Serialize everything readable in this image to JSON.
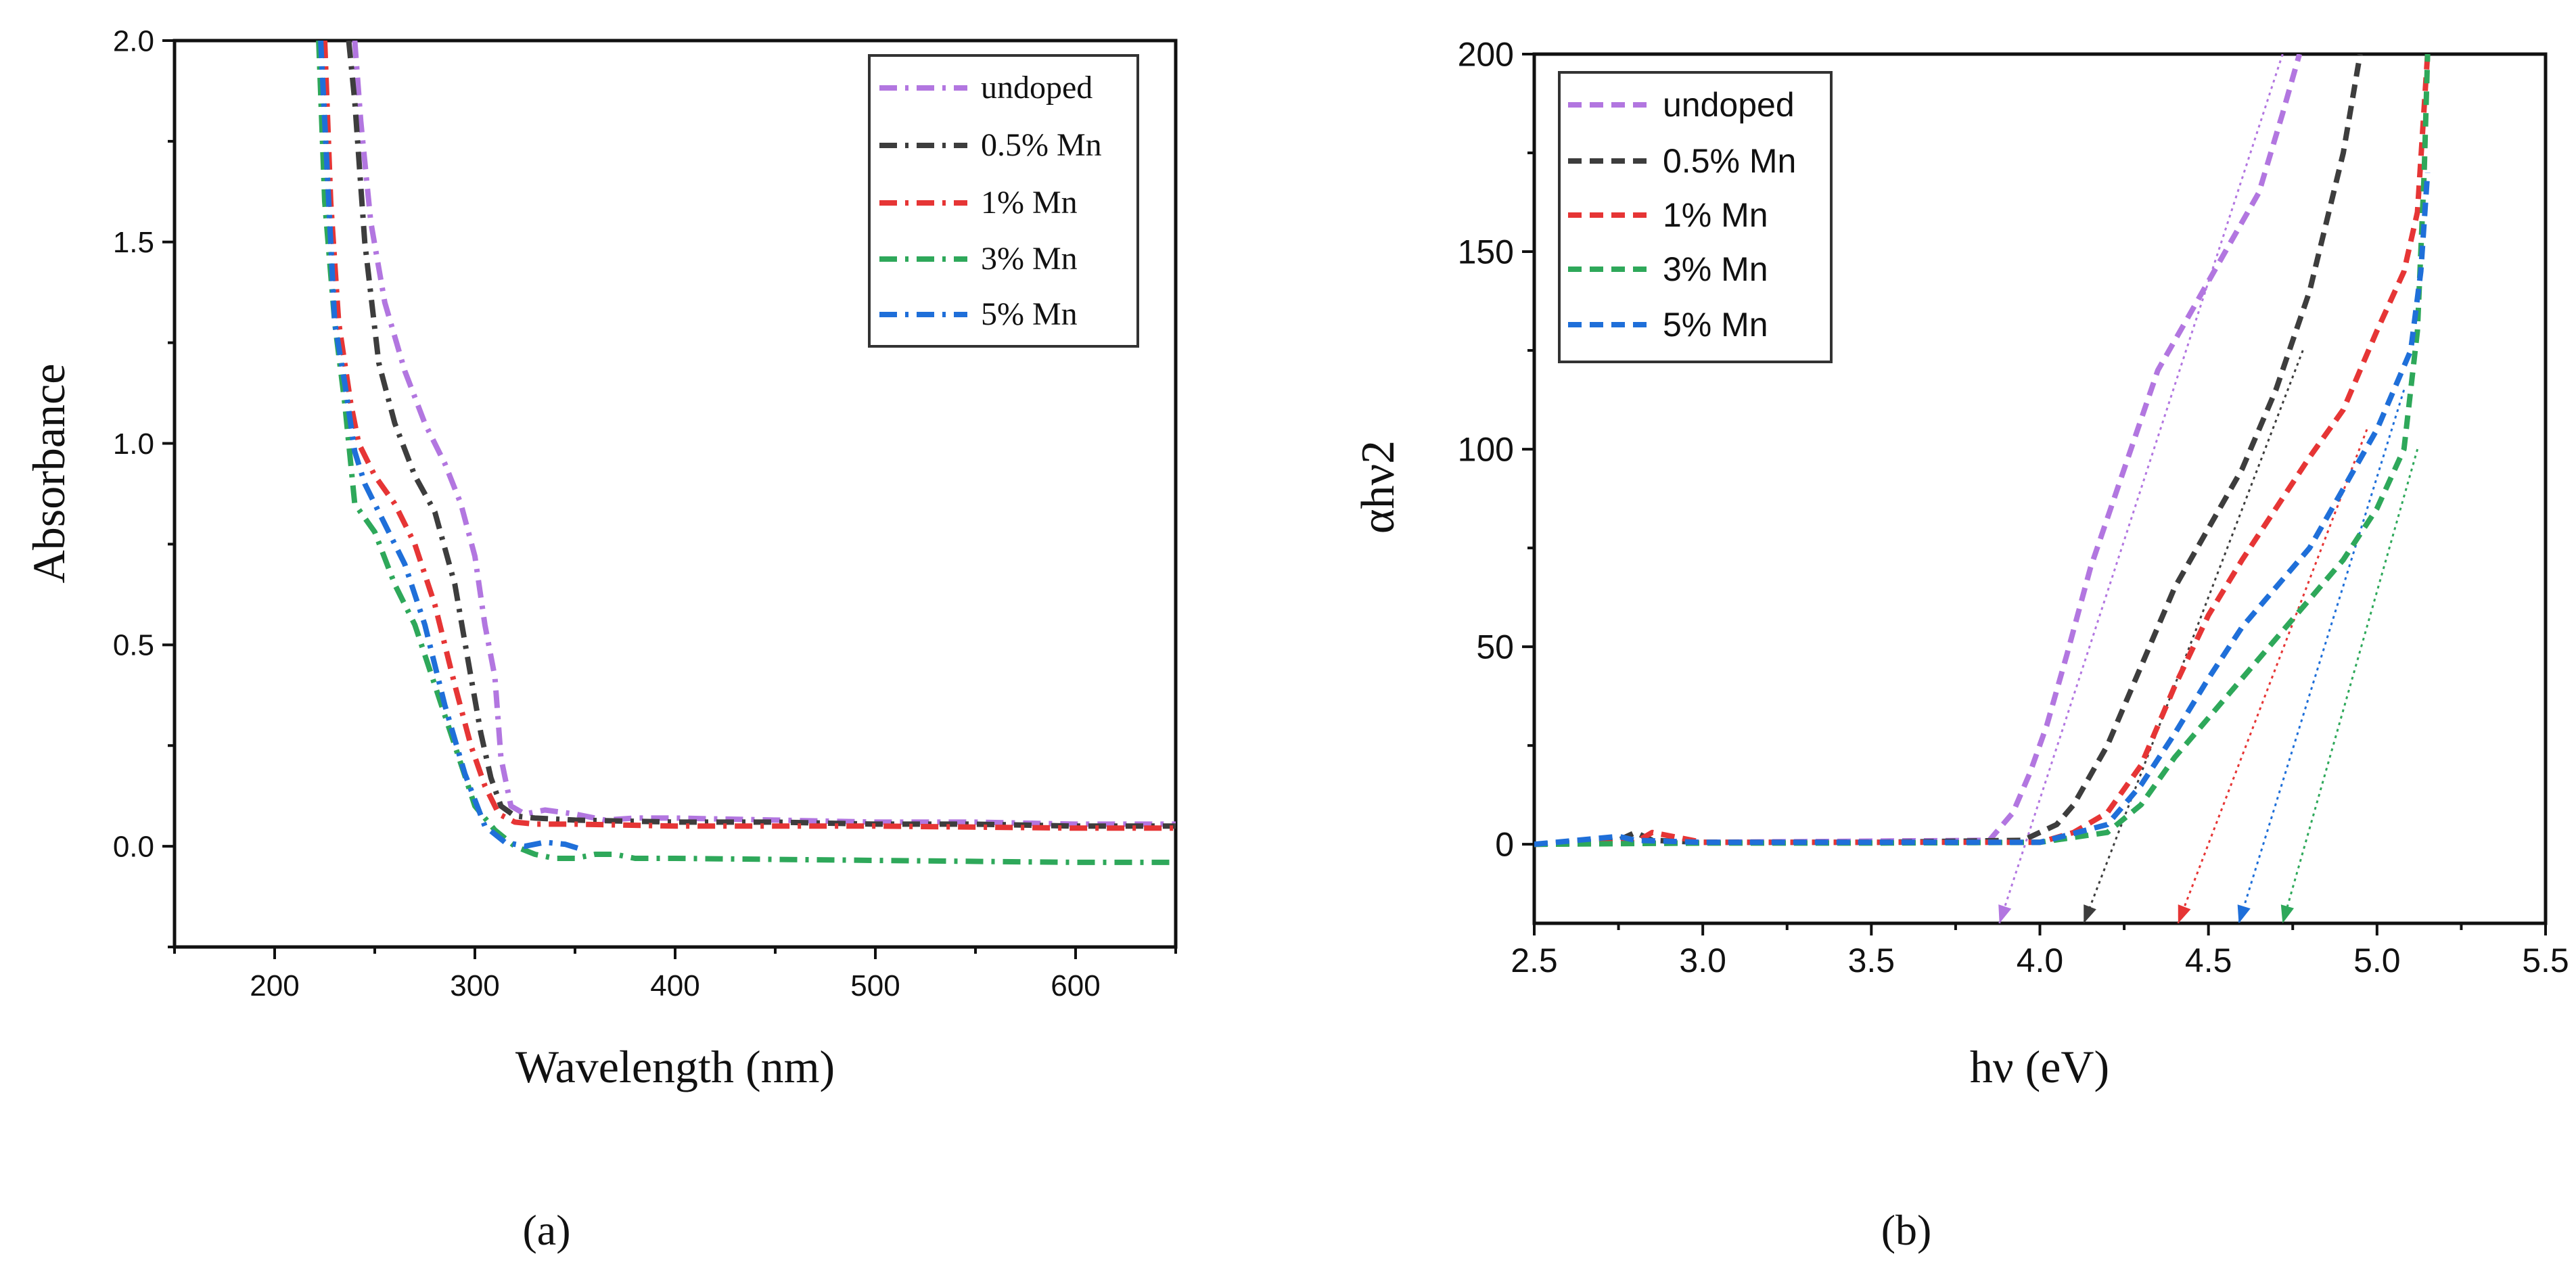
{
  "colors": {
    "undoped": "#b276e0",
    "mn05": "#3d3d3d",
    "mn1": "#e63535",
    "mn3": "#2ea85a",
    "mn5": "#1f6fd9"
  },
  "chart_data": [
    {
      "type": "line",
      "panel_label": "(a)",
      "xlabel": "Wavelength (nm)",
      "ylabel": "Absorbance",
      "xlim": [
        150,
        650
      ],
      "ylim": [
        -0.25,
        2.0
      ],
      "xticks": [
        200,
        300,
        400,
        500,
        600
      ],
      "yticks": [
        0.0,
        0.5,
        1.0,
        1.5,
        2.0
      ],
      "xtick_labels": [
        "200",
        "300",
        "400",
        "500",
        "600"
      ],
      "ytick_labels": [
        "0.0",
        "0.5",
        "1.0",
        "1.5",
        "2.0"
      ],
      "legend_position": "top-right",
      "series": [
        {
          "name": "undoped",
          "color_key": "undoped",
          "x": [
            240,
            243,
            248,
            255,
            265,
            275,
            285,
            293,
            300,
            305,
            310,
            313,
            318,
            325,
            335,
            350,
            365,
            380,
            400,
            450,
            500,
            550,
            600,
            650
          ],
          "y": [
            2.0,
            1.8,
            1.55,
            1.35,
            1.18,
            1.05,
            0.95,
            0.85,
            0.72,
            0.55,
            0.42,
            0.22,
            0.1,
            0.08,
            0.09,
            0.08,
            0.065,
            0.07,
            0.07,
            0.065,
            0.06,
            0.06,
            0.055,
            0.055
          ]
        },
        {
          "name": "0.5% Mn",
          "color_key": "mn05",
          "x": [
            237,
            240,
            245,
            252,
            260,
            270,
            280,
            290,
            297,
            303,
            308,
            313,
            320,
            330,
            350,
            400,
            450,
            500,
            550,
            600,
            650
          ],
          "y": [
            2.0,
            1.85,
            1.5,
            1.2,
            1.05,
            0.92,
            0.83,
            0.65,
            0.45,
            0.28,
            0.17,
            0.1,
            0.075,
            0.07,
            0.065,
            0.06,
            0.06,
            0.055,
            0.055,
            0.05,
            0.05
          ]
        },
        {
          "name": "1% Mn",
          "color_key": "mn1",
          "x": [
            225,
            228,
            232,
            238,
            242,
            250,
            260,
            270,
            280,
            290,
            298,
            305,
            312,
            320,
            330,
            350,
            400,
            500,
            600,
            650
          ],
          "y": [
            2.0,
            1.6,
            1.3,
            1.1,
            1.0,
            0.92,
            0.85,
            0.75,
            0.6,
            0.4,
            0.25,
            0.15,
            0.08,
            0.06,
            0.055,
            0.055,
            0.05,
            0.05,
            0.045,
            0.045
          ]
        },
        {
          "name": "3% Mn",
          "color_key": "mn3",
          "x": [
            222,
            225,
            230,
            235,
            240,
            250,
            260,
            270,
            280,
            290,
            300,
            310,
            320,
            330,
            340,
            350,
            360,
            370,
            380,
            400,
            500,
            600,
            650
          ],
          "y": [
            2.0,
            1.6,
            1.3,
            1.1,
            0.85,
            0.78,
            0.65,
            0.55,
            0.4,
            0.25,
            0.1,
            0.04,
            0.0,
            -0.02,
            -0.03,
            -0.03,
            -0.02,
            -0.02,
            -0.03,
            -0.03,
            -0.035,
            -0.04,
            -0.04
          ]
        },
        {
          "name": "5% Mn",
          "color_key": "mn5",
          "x": [
            223,
            226,
            230,
            235,
            240,
            245,
            255,
            265,
            275,
            285,
            295,
            305,
            315,
            325,
            335,
            345,
            355
          ],
          "y": [
            2.0,
            1.7,
            1.3,
            1.15,
            0.98,
            0.9,
            0.8,
            0.7,
            0.55,
            0.35,
            0.18,
            0.05,
            0.01,
            0.0,
            0.01,
            0.005,
            -0.01
          ]
        }
      ]
    },
    {
      "type": "line",
      "panel_label": "(b)",
      "xlabel": "hν (eV)",
      "ylabel": "αhν2",
      "xlim": [
        2.5,
        5.5
      ],
      "ylim": [
        -20,
        200
      ],
      "xticks": [
        2.5,
        3.0,
        3.5,
        4.0,
        4.5,
        5.0,
        5.5
      ],
      "yticks": [
        0,
        50,
        100,
        150,
        200
      ],
      "xtick_labels": [
        "2.5",
        "3.0",
        "3.5",
        "4.0",
        "4.5",
        "5.0",
        "5.5"
      ],
      "ytick_labels": [
        "0",
        "50",
        "100",
        "150",
        "200"
      ],
      "legend_position": "top-left",
      "series": [
        {
          "name": "undoped",
          "color_key": "undoped",
          "x": [
            2.5,
            3.0,
            3.5,
            3.85,
            3.92,
            3.97,
            4.02,
            4.08,
            4.15,
            4.25,
            4.35,
            4.45,
            4.55,
            4.65,
            4.72,
            4.77
          ],
          "y": [
            0,
            0.5,
            0.8,
            1,
            8,
            18,
            30,
            48,
            70,
            95,
            120,
            135,
            150,
            165,
            185,
            200
          ]
        },
        {
          "name": "0.5% Mn",
          "color_key": "mn05",
          "x": [
            2.5,
            2.75,
            2.8,
            2.85,
            3.0,
            3.5,
            3.95,
            4.05,
            4.1,
            4.2,
            4.3,
            4.4,
            4.5,
            4.6,
            4.7,
            4.8,
            4.9,
            4.95
          ],
          "y": [
            0,
            1,
            3,
            1,
            0.5,
            0.5,
            1,
            5,
            10,
            25,
            45,
            65,
            80,
            95,
            115,
            140,
            175,
            200
          ]
        },
        {
          "name": "1% Mn",
          "color_key": "mn1",
          "x": [
            2.5,
            2.8,
            2.85,
            3.0,
            3.5,
            4.0,
            4.1,
            4.2,
            4.3,
            4.4,
            4.5,
            4.6,
            4.7,
            4.8,
            4.9,
            5.0,
            5.08,
            5.12,
            5.15
          ],
          "y": [
            0,
            0.5,
            3,
            0.5,
            0.5,
            0.5,
            3,
            8,
            20,
            40,
            58,
            72,
            85,
            98,
            110,
            130,
            145,
            160,
            200
          ]
        },
        {
          "name": "3% Mn",
          "color_key": "mn3",
          "x": [
            2.5,
            3.0,
            3.5,
            4.0,
            4.2,
            4.3,
            4.4,
            4.5,
            4.6,
            4.7,
            4.8,
            4.9,
            5.0,
            5.08,
            5.12,
            5.14,
            5.15
          ],
          "y": [
            0,
            0.3,
            0.3,
            0.5,
            3,
            10,
            22,
            32,
            42,
            52,
            62,
            72,
            85,
            100,
            130,
            170,
            200
          ]
        },
        {
          "name": "5% Mn",
          "color_key": "mn5",
          "x": [
            2.5,
            2.75,
            2.8,
            3.0,
            3.5,
            4.0,
            4.2,
            4.3,
            4.4,
            4.5,
            4.6,
            4.7,
            4.8,
            4.9,
            5.0,
            5.05,
            5.1,
            5.13,
            5.15
          ],
          "y": [
            0,
            2,
            1,
            0.5,
            0.5,
            0.5,
            5,
            15,
            28,
            42,
            55,
            65,
            75,
            90,
            105,
            115,
            125,
            145,
            170
          ]
        }
      ],
      "tangent_lines": [
        {
          "color_key": "undoped",
          "x": [
            3.88,
            4.72
          ],
          "y": [
            -20,
            200
          ]
        },
        {
          "color_key": "mn05",
          "x": [
            4.13,
            4.78
          ],
          "y": [
            -20,
            125
          ]
        },
        {
          "color_key": "mn1",
          "x": [
            4.41,
            4.97
          ],
          "y": [
            -20,
            105
          ]
        },
        {
          "color_key": "mn3",
          "x": [
            4.72,
            5.12
          ],
          "y": [
            -20,
            100
          ]
        },
        {
          "color_key": "mn5",
          "x": [
            4.59,
            5.08
          ],
          "y": [
            -20,
            115
          ]
        }
      ]
    }
  ]
}
